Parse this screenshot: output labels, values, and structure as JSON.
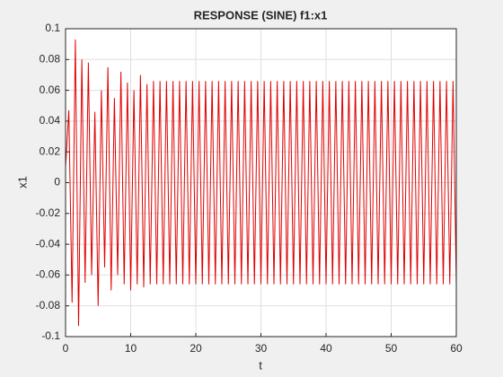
{
  "chart_data": {
    "type": "line",
    "title": "RESPONSE (SINE) f1:x1",
    "x_label": "t",
    "y_label": "x1",
    "x": [
      0,
      0.5,
      1,
      1.5,
      2,
      2.5,
      3,
      3.5,
      4,
      4.5,
      5,
      5.5,
      6,
      6.5,
      7,
      7.5,
      8,
      8.5,
      9,
      9.5,
      10,
      10.5,
      11,
      11.5,
      12,
      12.5,
      13,
      13.5,
      14,
      14.5,
      15,
      15.5,
      16,
      16.5,
      17,
      17.5,
      18,
      18.5,
      19,
      19.5,
      20,
      20.5,
      21,
      21.5,
      22,
      22.5,
      23,
      23.5,
      24,
      24.5,
      25,
      25.5,
      26,
      26.5,
      27,
      27.5,
      28,
      28.5,
      29,
      29.5,
      30,
      30.5,
      31,
      31.5,
      32,
      32.5,
      33,
      33.5,
      34,
      34.5,
      35,
      35.5,
      36,
      36.5,
      37,
      37.5,
      38,
      38.5,
      39,
      39.5,
      40,
      40.5,
      41,
      41.5,
      42,
      42.5,
      43,
      43.5,
      44,
      44.5,
      45,
      45.5,
      46,
      46.5,
      47,
      47.5,
      48,
      48.5,
      49,
      49.5,
      50,
      50.5,
      51,
      51.5,
      52,
      52.5,
      53,
      53.5,
      54,
      54.5,
      55,
      55.5,
      56,
      56.5,
      57,
      57.5,
      58,
      58.5,
      59,
      59.5,
      60
    ],
    "series": [
      {
        "name": "x1",
        "color": "#e00000",
        "values": [
          0.01,
          0.047,
          -0.078,
          0.093,
          -0.093,
          0.08,
          -0.065,
          0.078,
          -0.06,
          0.046,
          -0.08,
          0.06,
          -0.055,
          0.075,
          -0.07,
          0.055,
          -0.06,
          0.072,
          -0.066,
          0.065,
          -0.07,
          0.06,
          -0.066,
          0.07,
          -0.068,
          0.064,
          -0.066,
          0.066,
          -0.066,
          0.066,
          -0.066,
          0.066,
          -0.066,
          0.066,
          -0.066,
          0.066,
          -0.066,
          0.066,
          -0.066,
          0.066,
          -0.066,
          0.066,
          -0.066,
          0.066,
          -0.066,
          0.066,
          -0.066,
          0.066,
          -0.066,
          0.066,
          -0.066,
          0.066,
          -0.066,
          0.066,
          -0.066,
          0.066,
          -0.066,
          0.066,
          -0.066,
          0.066,
          -0.066,
          0.066,
          -0.066,
          0.066,
          -0.066,
          0.066,
          -0.066,
          0.066,
          -0.066,
          0.066,
          -0.066,
          0.066,
          -0.066,
          0.066,
          -0.066,
          0.066,
          -0.066,
          0.066,
          -0.066,
          0.066,
          -0.066,
          0.066,
          -0.066,
          0.066,
          -0.066,
          0.066,
          -0.066,
          0.066,
          -0.066,
          0.066,
          -0.066,
          0.066,
          -0.066,
          0.066,
          -0.066,
          0.066,
          -0.066,
          0.066,
          -0.066,
          0.066,
          -0.066,
          0.066,
          -0.066,
          0.066,
          -0.066,
          0.066,
          -0.066,
          0.066,
          -0.066,
          0.066,
          -0.066,
          0.066,
          -0.066,
          0.066,
          -0.066,
          0.066,
          -0.066,
          0.066,
          -0.066,
          0.066,
          -0.066
        ]
      }
    ],
    "xlim": [
      0,
      60
    ],
    "xticks": [
      0,
      10,
      20,
      30,
      40,
      50,
      60
    ],
    "ylim": [
      -0.1,
      0.1
    ],
    "yticks": [
      -0.1,
      -0.08,
      -0.06,
      -0.04,
      -0.02,
      0,
      0.02,
      0.04,
      0.06,
      0.08,
      0.1
    ],
    "grid": true
  }
}
